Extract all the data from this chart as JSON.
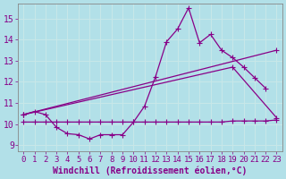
{
  "background_color": "#b2e0e8",
  "grid_color": "#c8e8e8",
  "line_color": "#880088",
  "x_label": "Windchill (Refroidissement éolien,°C)",
  "x_ticks": [
    0,
    1,
    2,
    3,
    4,
    5,
    6,
    7,
    8,
    9,
    10,
    11,
    12,
    13,
    14,
    15,
    16,
    17,
    18,
    19,
    20,
    21,
    22,
    23
  ],
  "ylim": [
    8.7,
    15.7
  ],
  "xlim": [
    -0.5,
    23.5
  ],
  "y_ticks": [
    9,
    10,
    11,
    12,
    13,
    14,
    15
  ],
  "series1_x": [
    0,
    1,
    2,
    3,
    4,
    5,
    6,
    7,
    8,
    9,
    10,
    11,
    12,
    13,
    14,
    15,
    16,
    17,
    18,
    19,
    20,
    21,
    22
  ],
  "series1_y": [
    10.45,
    10.6,
    10.45,
    9.85,
    9.55,
    9.5,
    9.3,
    9.5,
    9.5,
    9.5,
    10.1,
    10.85,
    12.25,
    13.9,
    14.5,
    15.5,
    13.85,
    14.25,
    13.5,
    13.15,
    12.7,
    12.2,
    11.7
  ],
  "series2_x": [
    0,
    1,
    2,
    3,
    4,
    5,
    6,
    7,
    8,
    9,
    10,
    11,
    12,
    13,
    14,
    15,
    16,
    17,
    18,
    19,
    20,
    21,
    22,
    23
  ],
  "series2_y": [
    10.1,
    10.1,
    10.1,
    10.1,
    10.1,
    10.1,
    10.1,
    10.1,
    10.1,
    10.1,
    10.1,
    10.1,
    10.1,
    10.1,
    10.1,
    10.1,
    10.1,
    10.1,
    10.1,
    10.15,
    10.15,
    10.15,
    10.15,
    10.2
  ],
  "series3_x": [
    0,
    23
  ],
  "series3_y": [
    10.45,
    13.5
  ],
  "series4_x": [
    0,
    19,
    23
  ],
  "series4_y": [
    10.45,
    12.7,
    10.3
  ],
  "tick_fontsize": 6.5,
  "label_fontsize": 7
}
